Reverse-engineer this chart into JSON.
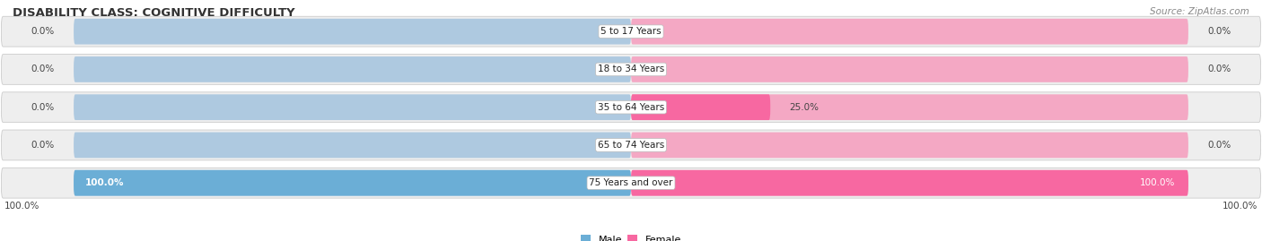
{
  "title": "DISABILITY CLASS: COGNITIVE DIFFICULTY",
  "source": "Source: ZipAtlas.com",
  "categories": [
    "5 to 17 Years",
    "18 to 34 Years",
    "35 to 64 Years",
    "65 to 74 Years",
    "75 Years and over"
  ],
  "male_values": [
    0.0,
    0.0,
    0.0,
    0.0,
    100.0
  ],
  "female_values": [
    0.0,
    0.0,
    25.0,
    0.0,
    100.0
  ],
  "male_color": "#6baed6",
  "female_color": "#f768a1",
  "male_color_light": "#aec9e0",
  "female_color_light": "#f4a8c4",
  "row_bg_color": "#eeeeee",
  "row_border_color": "#cccccc",
  "max_value": 100.0,
  "title_fontsize": 9.5,
  "label_fontsize": 7.5,
  "source_fontsize": 7.5
}
